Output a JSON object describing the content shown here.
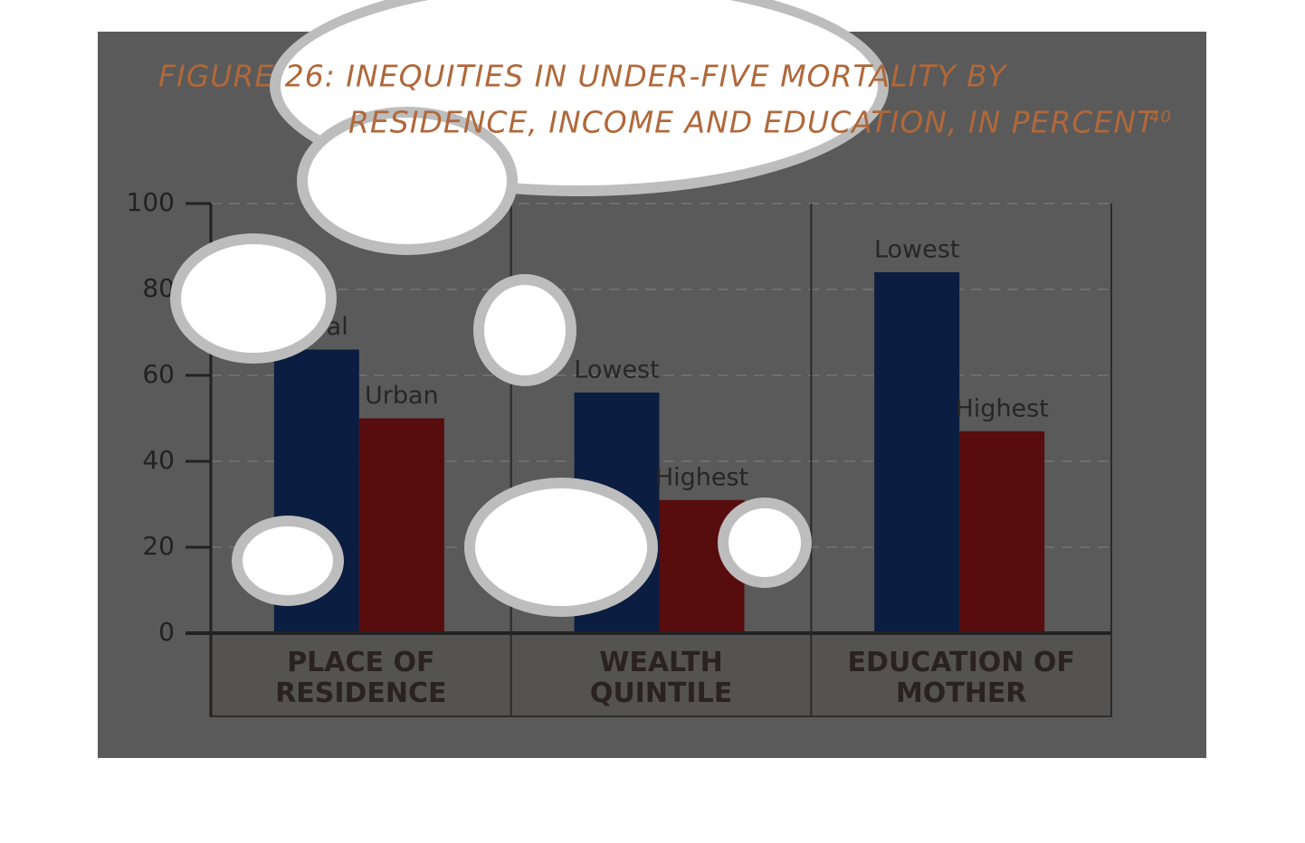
{
  "chart_data": {
    "type": "bar",
    "title": [
      "FIGURE 26: INEQUITIES IN UNDER-FIVE MORTALITY BY",
      "RESIDENCE, INCOME AND EDUCATION, IN PERCENT"
    ],
    "title_note": "40",
    "categories": [
      "PLACE OF RESIDENCE",
      "WEALTH QUINTILE",
      "EDUCATION OF MOTHER"
    ],
    "series": [
      {
        "color": "#0b1d40",
        "values": [
          66,
          56,
          84
        ],
        "bar_labels": [
          "Rural",
          "Lowest",
          "Lowest"
        ]
      },
      {
        "color": "#570c0e",
        "values": [
          50,
          31,
          47
        ],
        "bar_labels": [
          "Urban",
          "Highest",
          "Highest"
        ]
      }
    ],
    "ylim": [
      0,
      100
    ],
    "yticks": [
      0,
      20,
      40,
      60,
      80,
      100
    ],
    "grid": true
  }
}
